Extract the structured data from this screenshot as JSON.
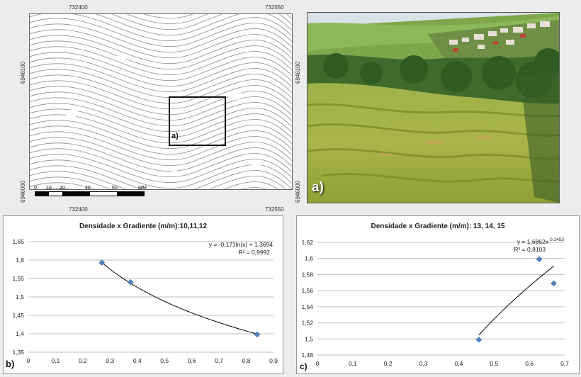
{
  "map": {
    "x_top_left": "732400",
    "x_top_right": "732550",
    "x_bottom_left": "732400",
    "x_bottom_right": "732550",
    "y_upper": "6946100",
    "y_lower": "6946000",
    "inset_label": "a)",
    "scale_ticks": [
      "0",
      "10",
      "20",
      "40",
      "60",
      "80"
    ],
    "scale_unit": "M"
  },
  "photo": {
    "label": "a)"
  },
  "colors": {
    "marker": "#4f81bd",
    "gridline": "#bfbfbf",
    "trend": "#000000",
    "contour": "#8c8c8c"
  },
  "charts": {
    "b": {
      "panel_letter": "b)"
    },
    "c": {
      "panel_letter": "c)"
    }
  },
  "chart_data": [
    {
      "type": "scatter",
      "title": "Densidade x Gradiente (m/m):10,11,12",
      "x": [
        0.27,
        0.375,
        0.84
      ],
      "y": [
        1.593,
        1.54,
        1.398
      ],
      "xlim": [
        0,
        0.9
      ],
      "ylim": [
        1.35,
        1.65
      ],
      "x_ticks": [
        "0",
        "0,1",
        "0,2",
        "0,3",
        "0,4",
        "0,5",
        "0,6",
        "0,7",
        "0,8",
        "0,9"
      ],
      "y_ticks": [
        "1,35",
        "1,4",
        "1,45",
        "1,5",
        "1,55",
        "1,6",
        "1,65"
      ],
      "trendline": {
        "type": "log",
        "a": -0.171,
        "b": 1.3694
      },
      "equation": "y = -0,171ln(x) + 1,3694",
      "r2": "R² = 0,9992",
      "grid": "horizontal"
    },
    {
      "type": "scatter",
      "title": "Densidade x Gradiente (m/m): 13, 14, 15",
      "x": [
        0.457,
        0.628,
        0.669
      ],
      "y": [
        1.499,
        1.599,
        1.569
      ],
      "xlim": [
        0,
        0.7
      ],
      "ylim": [
        1.48,
        1.62
      ],
      "x_ticks": [
        "0",
        "0,1",
        "0,2",
        "0,3",
        "0,4",
        "0,5",
        "0,6",
        "0,7"
      ],
      "y_ticks": [
        "1,48",
        "1,5",
        "1,52",
        "1,54",
        "1,56",
        "1,58",
        "1,6",
        "1,62"
      ],
      "trendline": {
        "type": "power",
        "a": 1.6862,
        "b": 0.1453
      },
      "equation": "y = 1,6862x",
      "equation_exp": "0,1453",
      "r2": "R² = 0,8103",
      "grid": "horizontal"
    }
  ]
}
